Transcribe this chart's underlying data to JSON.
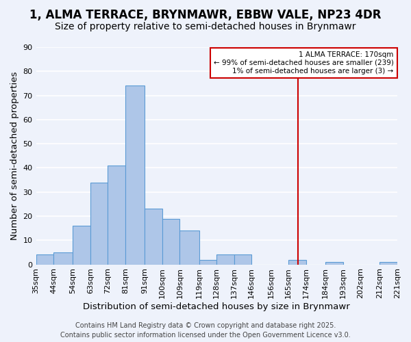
{
  "title": "1, ALMA TERRACE, BRYNMAWR, EBBW VALE, NP23 4DR",
  "subtitle": "Size of property relative to semi-detached houses in Brynmawr",
  "xlabel": "Distribution of semi-detached houses by size in Brynmawr",
  "ylabel": "Number of semi-detached properties",
  "bin_labels": [
    "35sqm",
    "44sqm",
    "54sqm",
    "63sqm",
    "72sqm",
    "81sqm",
    "91sqm",
    "100sqm",
    "109sqm",
    "119sqm",
    "128sqm",
    "137sqm",
    "146sqm",
    "156sqm",
    "165sqm",
    "174sqm",
    "184sqm",
    "193sqm",
    "202sqm",
    "212sqm",
    "221sqm"
  ],
  "bin_edges": [
    35,
    44,
    54,
    63,
    72,
    81,
    91,
    100,
    109,
    119,
    128,
    137,
    146,
    156,
    165,
    174,
    184,
    193,
    202,
    212,
    221
  ],
  "bar_heights": [
    4,
    5,
    16,
    34,
    41,
    74,
    23,
    19,
    14,
    2,
    4,
    4,
    0,
    0,
    2,
    0,
    1,
    0,
    0,
    1
  ],
  "bar_color": "#aec6e8",
  "bar_edge_color": "#5b9bd5",
  "vline_x": 170,
  "vline_color": "#cc0000",
  "ylim": [
    0,
    90
  ],
  "yticks": [
    0,
    10,
    20,
    30,
    40,
    50,
    60,
    70,
    80,
    90
  ],
  "annotation_title": "1 ALMA TERRACE: 170sqm",
  "annotation_line1": "← 99% of semi-detached houses are smaller (239)",
  "annotation_line2": "1% of semi-detached houses are larger (3) →",
  "annotation_box_color": "#ffffff",
  "annotation_box_edge": "#cc0000",
  "footer1": "Contains HM Land Registry data © Crown copyright and database right 2025.",
  "footer2": "Contains public sector information licensed under the Open Government Licence v3.0.",
  "background_color": "#eef2fb",
  "grid_color": "#ffffff",
  "title_fontsize": 12,
  "subtitle_fontsize": 10,
  "axis_label_fontsize": 9.5,
  "tick_fontsize": 8,
  "footer_fontsize": 7
}
